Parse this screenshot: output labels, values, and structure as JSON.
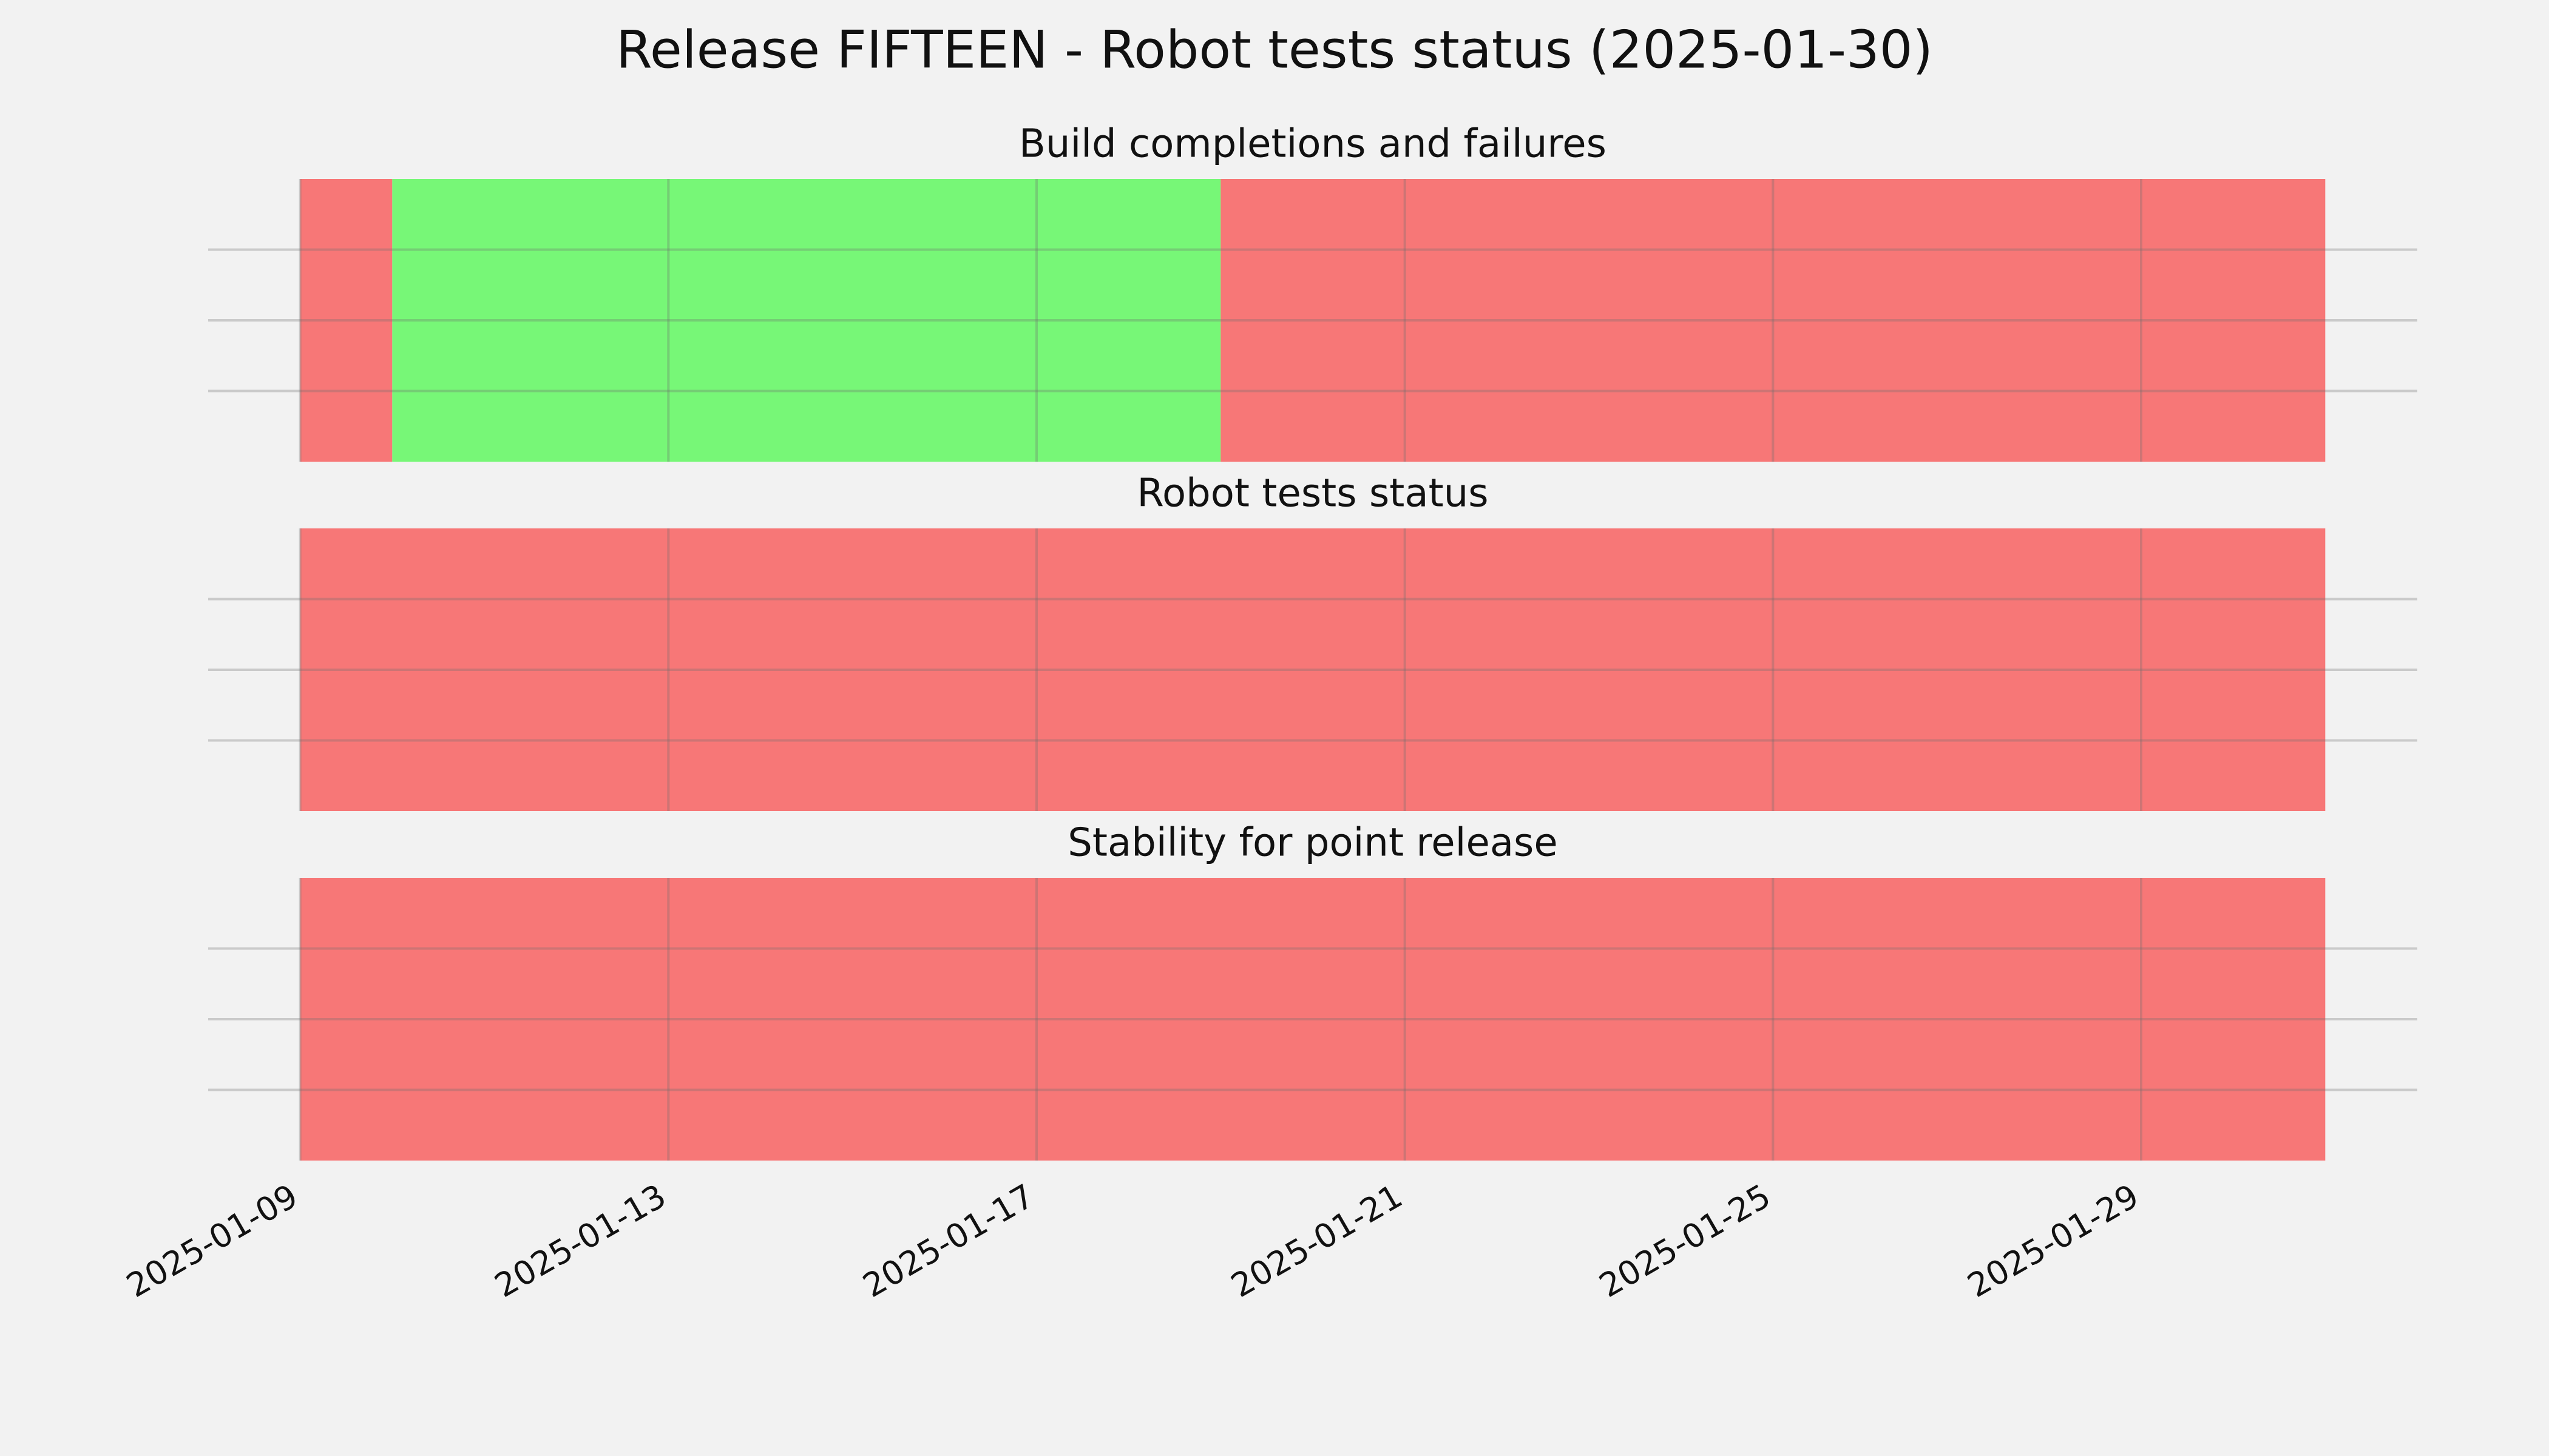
{
  "title": "Release FIFTEEN - Robot tests status (2025-01-30)",
  "chart_data": [
    {
      "type": "timeline",
      "title": "Build completions and failures",
      "segments": [
        {
          "start": "2025-01-09",
          "end": "2025-01-10",
          "color": "#f77777"
        },
        {
          "start": "2025-01-10",
          "end": "2025-01-19",
          "color": "#77f777"
        },
        {
          "start": "2025-01-19",
          "end": "2025-01-31",
          "color": "#f77777"
        }
      ],
      "xlim": [
        "2025-01-08",
        "2025-02-01"
      ],
      "xticks": [
        "2025-01-09",
        "2025-01-13",
        "2025-01-17",
        "2025-01-21",
        "2025-01-25",
        "2025-01-29"
      ],
      "ylim": [
        0,
        1
      ],
      "yticks": [
        0.25,
        0.5,
        0.75
      ],
      "ytick_labels_visible": false,
      "xtick_labels_visible": false,
      "grid": true
    },
    {
      "type": "timeline",
      "title": "Robot tests status",
      "segments": [
        {
          "start": "2025-01-09",
          "end": "2025-01-31",
          "color": "#f77777"
        }
      ],
      "xlim": [
        "2025-01-08",
        "2025-02-01"
      ],
      "xticks": [
        "2025-01-09",
        "2025-01-13",
        "2025-01-17",
        "2025-01-21",
        "2025-01-25",
        "2025-01-29"
      ],
      "ylim": [
        0,
        1
      ],
      "yticks": [
        0.25,
        0.5,
        0.75
      ],
      "ytick_labels_visible": false,
      "xtick_labels_visible": false,
      "grid": true
    },
    {
      "type": "timeline",
      "title": "Stability for point release",
      "segments": [
        {
          "start": "2025-01-09",
          "end": "2025-01-31",
          "color": "#f77777"
        }
      ],
      "xlim": [
        "2025-01-08",
        "2025-02-01"
      ],
      "xticks": [
        "2025-01-09",
        "2025-01-13",
        "2025-01-17",
        "2025-01-21",
        "2025-01-25",
        "2025-01-29"
      ],
      "ylim": [
        0,
        1
      ],
      "yticks": [
        0.25,
        0.5,
        0.75
      ],
      "ytick_labels_visible": false,
      "xtick_labels_visible": true,
      "grid": true
    }
  ]
}
